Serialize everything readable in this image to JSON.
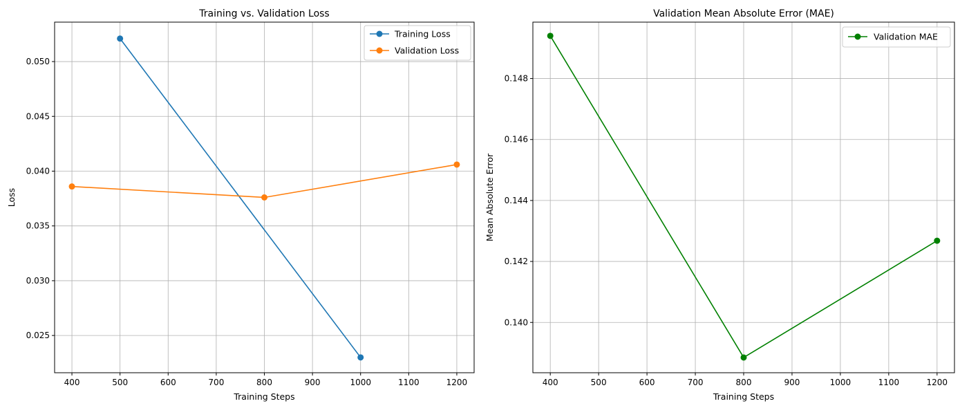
{
  "chart_data": [
    {
      "type": "line",
      "title": "Training vs. Validation Loss",
      "xlabel": "Training Steps",
      "ylabel": "Loss",
      "xlim": [
        364,
        1236
      ],
      "ylim": [
        0.0216,
        0.0536
      ],
      "xticks": [
        400,
        500,
        600,
        700,
        800,
        900,
        1000,
        1100,
        1200
      ],
      "xtick_labels": [
        "400",
        "500",
        "600",
        "700",
        "800",
        "900",
        "1000",
        "1100",
        "1200"
      ],
      "yticks": [
        0.025,
        0.03,
        0.035,
        0.04,
        0.045,
        0.05
      ],
      "ytick_labels": [
        "0.025",
        "0.030",
        "0.035",
        "0.040",
        "0.045",
        "0.050"
      ],
      "grid": true,
      "legend_position": "top-right",
      "series": [
        {
          "name": "Training Loss",
          "color": "#1f77b4",
          "x": [
            500,
            1000
          ],
          "y": [
            0.0521,
            0.023
          ]
        },
        {
          "name": "Validation Loss",
          "color": "#ff7f0e",
          "x": [
            400,
            800,
            1200
          ],
          "y": [
            0.0386,
            0.0376,
            0.0406
          ]
        }
      ]
    },
    {
      "type": "line",
      "title": "Validation Mean Absolute Error (MAE)",
      "xlabel": "Training Steps",
      "ylabel": "Mean Absolute Error",
      "xlim": [
        364,
        1236
      ],
      "ylim": [
        0.13835,
        0.14985
      ],
      "xticks": [
        400,
        500,
        600,
        700,
        800,
        900,
        1000,
        1100,
        1200
      ],
      "xtick_labels": [
        "400",
        "500",
        "600",
        "700",
        "800",
        "900",
        "1000",
        "1100",
        "1200"
      ],
      "yticks": [
        0.14,
        0.142,
        0.144,
        0.146,
        0.148
      ],
      "ytick_labels": [
        "0.140",
        "0.142",
        "0.144",
        "0.146",
        "0.148"
      ],
      "grid": true,
      "legend_position": "top-right",
      "series": [
        {
          "name": "Validation MAE",
          "color": "#008000",
          "x": [
            400,
            800,
            1200
          ],
          "y": [
            0.1494,
            0.13885,
            0.14268
          ]
        }
      ]
    }
  ]
}
